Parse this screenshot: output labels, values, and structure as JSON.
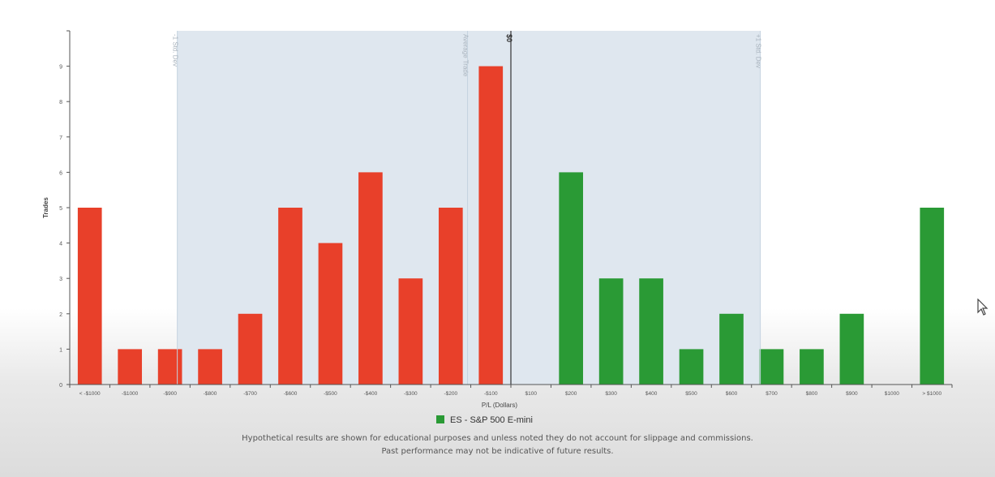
{
  "chart_data": {
    "type": "bar",
    "xlabel": "P/L (Dollars)",
    "ylabel": "Trades",
    "ylim": [
      0,
      10
    ],
    "yticks": [
      0,
      1,
      2,
      3,
      4,
      5,
      6,
      7,
      8,
      9
    ],
    "categories": [
      "< -$1000",
      "-$1000",
      "-$900",
      "-$800",
      "-$700",
      "-$600",
      "-$500",
      "-$400",
      "-$300",
      "-$200",
      "-$100",
      "$100",
      "$200",
      "$300",
      "$400",
      "$500",
      "$600",
      "$700",
      "$800",
      "$900",
      "$1000",
      "> $1000"
    ],
    "values": [
      5,
      1,
      1,
      1,
      2,
      5,
      4,
      6,
      3,
      5,
      9,
      0,
      6,
      3,
      3,
      1,
      2,
      1,
      1,
      2,
      0,
      5
    ],
    "bar_colors": {
      "negative": "#e8402a",
      "positive": "#2a9a35"
    },
    "bands": [
      {
        "from_category": "-$900",
        "to_category": "$700",
        "color": "#dfe7ef"
      }
    ],
    "reference_lines": [
      {
        "label": "-1 Std. Dev",
        "at_category": "-$900",
        "color": "#c5d3e0"
      },
      {
        "label": "Average Trade",
        "at_category": "-$100",
        "color": "#c5d3e0"
      },
      {
        "label": "$0",
        "at_category": "$100",
        "color": "#333333"
      },
      {
        "label": "+1 Std. Dev",
        "at_category": "$700",
        "color": "#c5d3e0"
      }
    ],
    "legend": {
      "position": "bottom",
      "items": [
        {
          "label": "ES - S&P 500 E-mini",
          "color": "#2a9a35"
        }
      ]
    }
  },
  "disclaimer": {
    "line1": "Hypothetical results are shown for educational purposes and unless noted they do not account for slippage and commissions.",
    "line2": "Past performance may not be indicative of future results."
  }
}
